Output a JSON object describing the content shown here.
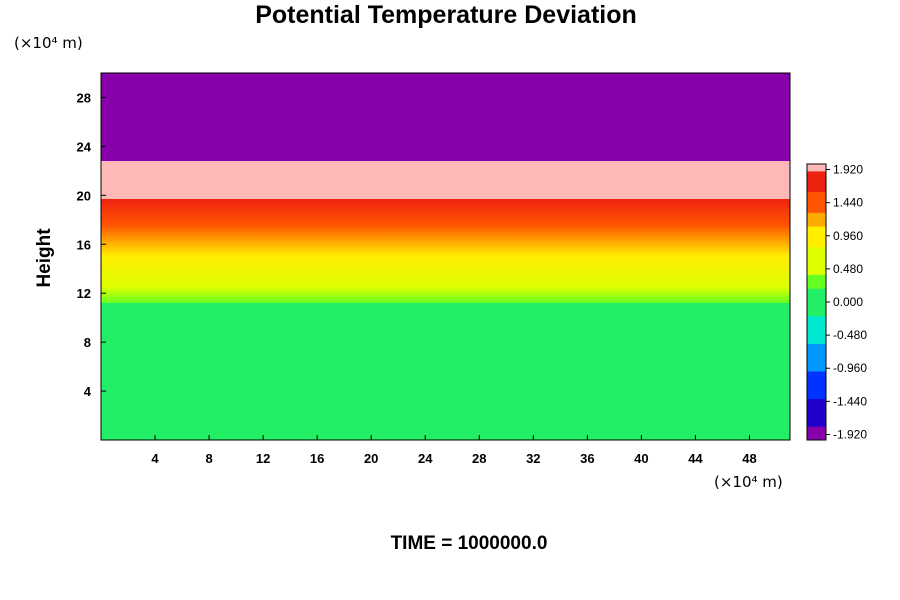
{
  "chart_data": {
    "type": "heatmap",
    "title": "Potential Temperature Deviation",
    "ylabel": "Height",
    "xlabel": "",
    "x_unit": "(×10⁴ m)",
    "y_unit": "(×10⁴ m)",
    "xlim": [
      0,
      51
    ],
    "ylim": [
      0,
      30
    ],
    "x_ticks": [
      4,
      8,
      12,
      16,
      20,
      24,
      28,
      32,
      36,
      40,
      44,
      48
    ],
    "y_ticks": [
      4,
      8,
      12,
      16,
      20,
      24,
      28
    ],
    "colorbar": {
      "range": [
        -2.0,
        2.0
      ],
      "tick_labels": [
        "1.920",
        "1.440",
        "0.960",
        "0.480",
        "0.000",
        "-0.480",
        "-0.960",
        "-1.440",
        "-1.920"
      ],
      "tick_values": [
        1.92,
        1.44,
        0.96,
        0.48,
        0.0,
        -0.48,
        -0.96,
        -1.44,
        -1.92
      ],
      "color_stops": [
        {
          "value": -2.0,
          "color": "#8800aa"
        },
        {
          "value": -1.6,
          "color": "#2200cc"
        },
        {
          "value": -1.2,
          "color": "#0033ff"
        },
        {
          "value": -0.8,
          "color": "#0099ff"
        },
        {
          "value": -0.4,
          "color": "#00e8d0"
        },
        {
          "value": 0.0,
          "color": "#22ee66"
        },
        {
          "value": 0.3,
          "color": "#66ff22"
        },
        {
          "value": 0.6,
          "color": "#ddff00"
        },
        {
          "value": 0.9,
          "color": "#ffee00"
        },
        {
          "value": 1.2,
          "color": "#ffaa00"
        },
        {
          "value": 1.5,
          "color": "#ff5500"
        },
        {
          "value": 1.75,
          "color": "#ee2211"
        },
        {
          "value": 2.0,
          "color": "#ffb8b8"
        }
      ]
    },
    "regions": [
      {
        "name": "upper",
        "y_from": 22.8,
        "y_to": 30,
        "value": -2.0
      },
      {
        "name": "stable-layer",
        "y_from": 19.7,
        "y_to": 22.8,
        "value": 2.0
      },
      {
        "name": "turbulent-band",
        "y_from": 11.2,
        "y_to": 19.7,
        "value": 1.0
      },
      {
        "name": "lower",
        "y_from": 0,
        "y_to": 11.2,
        "value": 0.0
      }
    ]
  },
  "footer": {
    "time_label": "TIME = 1000000.0"
  }
}
